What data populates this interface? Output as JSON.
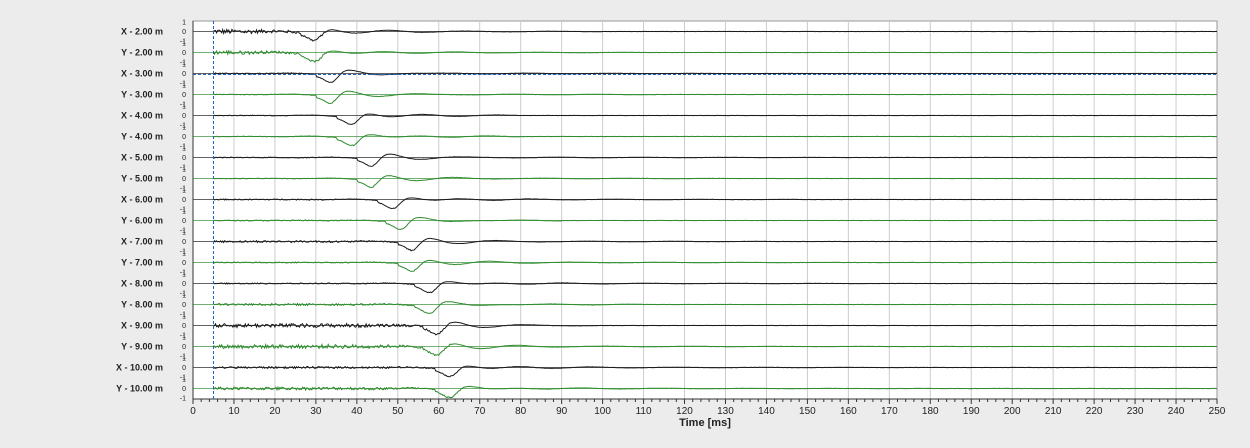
{
  "chart_data": {
    "type": "line",
    "xlabel": "Time [ms]",
    "xlim": [
      0,
      250
    ],
    "x_ticks": [
      0,
      10,
      20,
      30,
      40,
      50,
      60,
      70,
      80,
      90,
      100,
      110,
      120,
      130,
      140,
      150,
      160,
      170,
      180,
      190,
      200,
      210,
      220,
      230,
      240,
      250
    ],
    "amplitude_ticks": [
      "1",
      "0",
      "-1"
    ],
    "grid": true,
    "marker_line_x": 5,
    "marker_trace_index": 2,
    "colors": {
      "x": "#1a1a1a",
      "y": "#2e8b2e",
      "marker": "#1f5fbf",
      "grid": "#cccccc",
      "plot_bg": "#ffffff",
      "page_bg": "#ececec"
    },
    "series": [
      {
        "name": "X -  2.00 m",
        "component": "x",
        "arrival_ms": 30,
        "envelope_end_ms": 100,
        "hf_noise": 0.5
      },
      {
        "name": "Y -  2.00 m",
        "component": "y",
        "arrival_ms": 30,
        "envelope_end_ms": 110,
        "hf_noise": 0.4
      },
      {
        "name": "X -  3.00 m",
        "component": "x",
        "arrival_ms": 34,
        "envelope_end_ms": 250,
        "hf_noise": 0.1
      },
      {
        "name": "Y -  3.00 m",
        "component": "y",
        "arrival_ms": 34,
        "envelope_end_ms": 120,
        "hf_noise": 0.05
      },
      {
        "name": "X -  4.00 m",
        "component": "x",
        "arrival_ms": 39,
        "envelope_end_ms": 80,
        "hf_noise": 0.05
      },
      {
        "name": "Y -  4.00 m",
        "component": "y",
        "arrival_ms": 39,
        "envelope_end_ms": 80,
        "hf_noise": 0.05
      },
      {
        "name": "X -  5.00 m",
        "component": "x",
        "arrival_ms": 44,
        "envelope_end_ms": 250,
        "hf_noise": 0.08
      },
      {
        "name": "Y -  5.00 m",
        "component": "y",
        "arrival_ms": 44,
        "envelope_end_ms": 130,
        "hf_noise": 0.05
      },
      {
        "name": "X -  6.00 m",
        "component": "x",
        "arrival_ms": 49,
        "envelope_end_ms": 180,
        "hf_noise": 0.1
      },
      {
        "name": "Y -  6.00 m",
        "component": "y",
        "arrival_ms": 51,
        "envelope_end_ms": 90,
        "hf_noise": 0.1
      },
      {
        "name": "X -  7.00 m",
        "component": "x",
        "arrival_ms": 54,
        "envelope_end_ms": 140,
        "hf_noise": 0.2
      },
      {
        "name": "Y -  7.00 m",
        "component": "y",
        "arrival_ms": 54,
        "envelope_end_ms": 250,
        "hf_noise": 0.1
      },
      {
        "name": "X -  8.00 m",
        "component": "x",
        "arrival_ms": 58,
        "envelope_end_ms": 250,
        "hf_noise": 0.1
      },
      {
        "name": "Y -  8.00 m",
        "component": "y",
        "arrival_ms": 58,
        "envelope_end_ms": 110,
        "hf_noise": 0.2
      },
      {
        "name": "X -  9.00 m",
        "component": "x",
        "arrival_ms": 60,
        "envelope_end_ms": 100,
        "hf_noise": 0.4
      },
      {
        "name": "Y -  9.00 m",
        "component": "y",
        "arrival_ms": 60,
        "envelope_end_ms": 250,
        "hf_noise": 0.4
      },
      {
        "name": "X - 10.00 m",
        "component": "x",
        "arrival_ms": 63,
        "envelope_end_ms": 250,
        "hf_noise": 0.2
      },
      {
        "name": "Y - 10.00 m",
        "component": "y",
        "arrival_ms": 63,
        "envelope_end_ms": 250,
        "hf_noise": 0.3
      }
    ]
  }
}
